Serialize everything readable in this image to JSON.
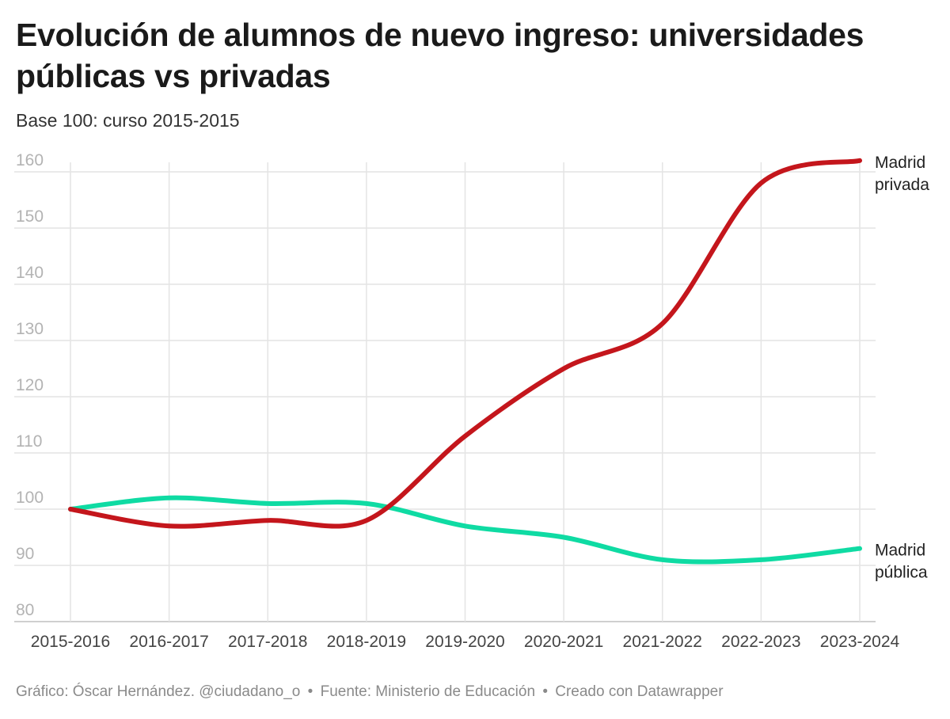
{
  "header": {
    "title": "Evolución de alumnos de nuevo ingreso: universidades públicas vs privadas",
    "subtitle": "Base 100: curso 2015-2015"
  },
  "footer": {
    "credit": "Gráfico: Óscar Hernández. @ciudadano_o",
    "source": "Fuente: Ministerio de Educación",
    "tool": "Creado con Datawrapper",
    "separator": "•"
  },
  "chart_data": {
    "type": "line",
    "title": "Evolución de alumnos de nuevo ingreso: universidades públicas vs privadas",
    "subtitle": "Base 100: curso 2015-2015",
    "xlabel": "",
    "ylabel": "",
    "categories": [
      "2015-2016",
      "2016-2017",
      "2017-2018",
      "2018-2019",
      "2019-2020",
      "2020-2021",
      "2021-2022",
      "2022-2023",
      "2023-2024"
    ],
    "ylim": [
      80,
      160
    ],
    "yticks": [
      80,
      90,
      100,
      110,
      120,
      130,
      140,
      150,
      160
    ],
    "grid": true,
    "series": [
      {
        "name": "Madrid pública",
        "label_lines": [
          "Madrid",
          "pública"
        ],
        "color": "#0fdba3",
        "values": [
          100,
          102,
          101,
          101,
          97,
          95,
          91,
          91,
          93
        ]
      },
      {
        "name": "Madrid privada",
        "label_lines": [
          "Madrid",
          "privada"
        ],
        "color": "#c4161c",
        "values": [
          100,
          97,
          98,
          98,
          113,
          125,
          133,
          158,
          162
        ]
      }
    ]
  }
}
